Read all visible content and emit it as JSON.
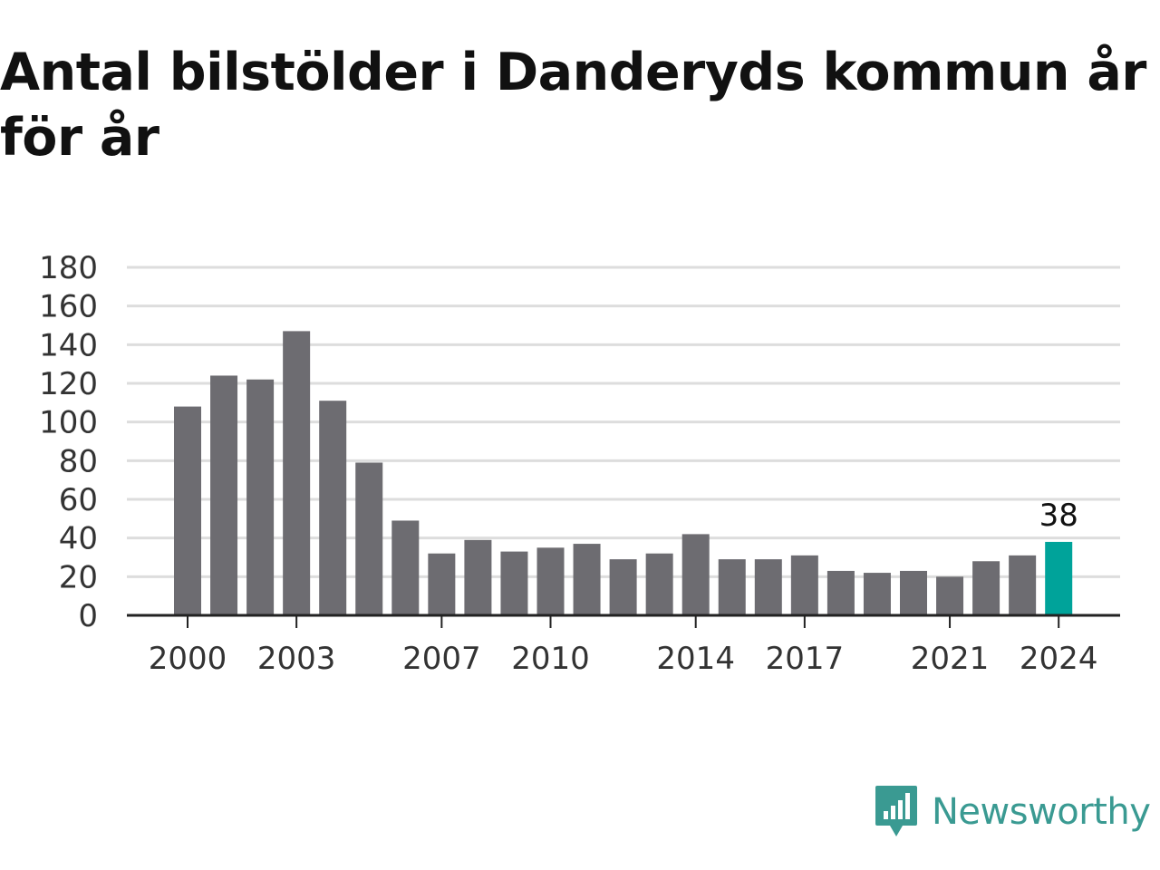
{
  "title": "Antal bilstölder i Danderyds kommun år för år",
  "brand": "Newsworthy",
  "colors": {
    "bar": "#6d6c71",
    "highlight": "#00a39a",
    "grid": "#dddddd",
    "axis": "#222222",
    "brand": "#3a9a92"
  },
  "chart_data": {
    "type": "bar",
    "x": [
      2000,
      2001,
      2002,
      2003,
      2004,
      2005,
      2006,
      2007,
      2008,
      2009,
      2010,
      2011,
      2012,
      2013,
      2014,
      2015,
      2016,
      2017,
      2018,
      2019,
      2020,
      2021,
      2022,
      2023,
      2024
    ],
    "values": [
      108,
      124,
      122,
      147,
      111,
      79,
      49,
      32,
      39,
      33,
      35,
      37,
      29,
      32,
      42,
      29,
      29,
      31,
      23,
      22,
      23,
      20,
      28,
      31,
      38
    ],
    "highlight_category": 2024,
    "data_labels": [
      {
        "x": 2024,
        "text": "38"
      }
    ],
    "x_tick_labels": [
      "2000",
      "2003",
      "2007",
      "2010",
      "2014",
      "2017",
      "2021",
      "2024"
    ],
    "y_tick_labels": [
      "0",
      "20",
      "40",
      "60",
      "80",
      "100",
      "120",
      "140",
      "160",
      "180"
    ],
    "ylim": [
      0,
      180
    ],
    "grid": true,
    "title": "Antal bilstölder i Danderyds kommun år för år",
    "xlabel": "",
    "ylabel": ""
  }
}
